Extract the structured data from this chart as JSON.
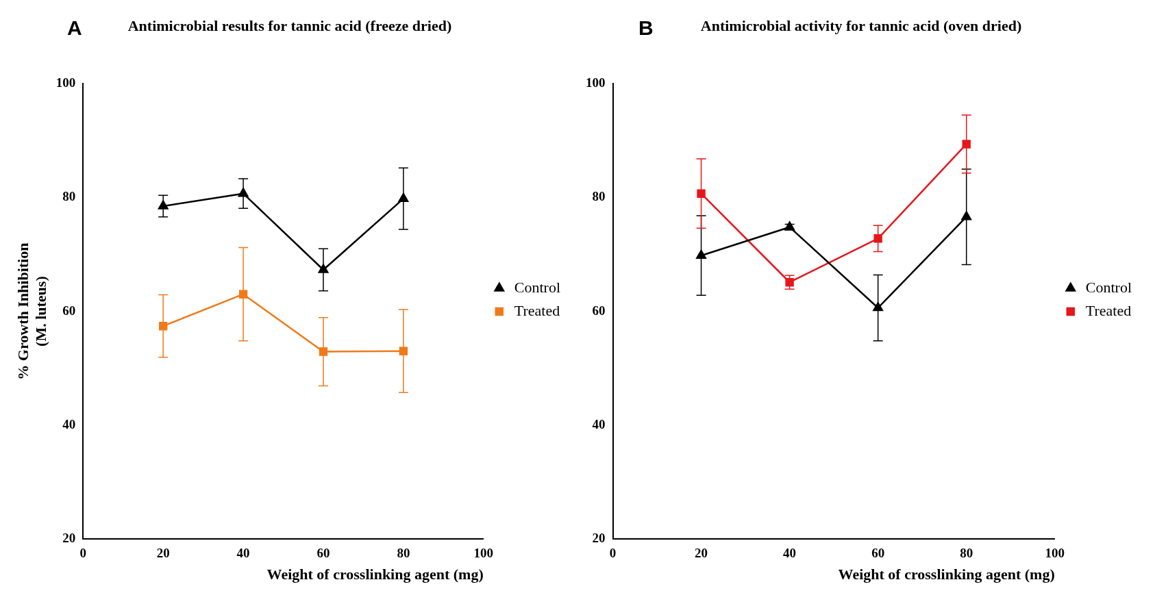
{
  "chart_data": [
    {
      "type": "line",
      "title": "Antimicrobial results for tannic acid (freeze dried)",
      "annotations": [
        "A"
      ],
      "xlabel": "Weight of crosslinking agent (mg)",
      "ylabel": "% Growth Inhibition\n(M. luteus)",
      "x": [
        20,
        40,
        60,
        80
      ],
      "xlim": [
        0,
        100
      ],
      "xticks": [
        0,
        20,
        40,
        60,
        80,
        100
      ],
      "ylim": [
        20,
        100
      ],
      "yticks": [
        20,
        40,
        60,
        80,
        100
      ],
      "legend": "right",
      "series": [
        {
          "name": "Control",
          "color": "#000000",
          "marker": "triangle",
          "values": [
            78.5,
            80.7,
            67.3,
            79.8
          ],
          "errors": [
            1.9,
            2.6,
            3.7,
            5.4
          ]
        },
        {
          "name": "Treated",
          "color": "#f07a1a",
          "marker": "square",
          "values": [
            57.4,
            63.0,
            52.9,
            53.0
          ],
          "errors": [
            5.5,
            8.2,
            6.0,
            7.3
          ]
        }
      ]
    },
    {
      "type": "line",
      "title": "Antimicrobial activity for tannic acid (oven dried)",
      "annotations": [
        "B"
      ],
      "xlabel": "Weight of crosslinking agent (mg)",
      "x": [
        20,
        40,
        60,
        80
      ],
      "xlim": [
        0,
        100
      ],
      "xticks": [
        0,
        20,
        40,
        60,
        80,
        100
      ],
      "ylim": [
        20,
        100
      ],
      "yticks": [
        20,
        40,
        60,
        80,
        100
      ],
      "legend": "right",
      "series": [
        {
          "name": "Control",
          "color": "#000000",
          "marker": "triangle",
          "values": [
            69.8,
            74.8,
            60.6,
            76.6
          ],
          "errors": [
            7.0,
            0.5,
            5.8,
            8.4
          ]
        },
        {
          "name": "Treated",
          "color": "#e8161a",
          "marker": "square",
          "values": [
            80.7,
            65.1,
            72.8,
            89.4
          ],
          "errors": [
            6.1,
            1.2,
            2.3,
            5.1
          ]
        }
      ]
    }
  ]
}
